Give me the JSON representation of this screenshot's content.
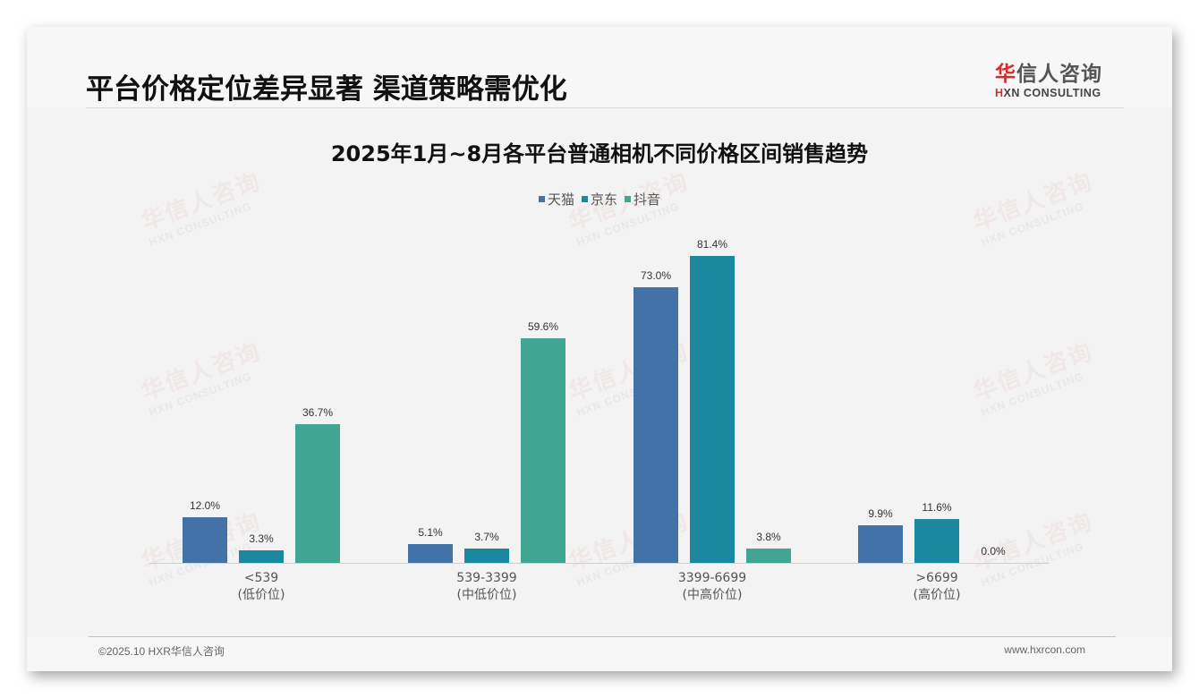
{
  "header": {
    "title": "平台价格定位差异显著 渠道策略需优化",
    "logo": {
      "cn_accent": "华",
      "cn_rest": "信人咨询",
      "en_accent": "H",
      "en_rest": "XN CONSULTING"
    }
  },
  "watermark": {
    "cn": "华信人咨询",
    "en": "HXN CONSULTING"
  },
  "colors": {
    "tmall": "#4272a8",
    "jd": "#1a89a0",
    "douyin": "#40a691",
    "background": "#f3f3f3",
    "logo_red": "#d52b2b"
  },
  "chart_data": {
    "type": "bar",
    "title": "2025年1月~8月各平台普通相机不同价格区间销售趋势",
    "xlabel": "",
    "ylabel": "",
    "ylim": [
      0,
      90
    ],
    "grid": false,
    "legend_position": "top",
    "categories": [
      "<539 (低价位)",
      "539-3399 (中低价位)",
      "3399-6699 (中高价位)",
      ">6699 (高价位)"
    ],
    "category_lines": [
      [
        "<539",
        "(低价位)"
      ],
      [
        "539-3399",
        "(中低价位)"
      ],
      [
        "3399-6699",
        "(中高价位)"
      ],
      [
        ">6699",
        "(高价位)"
      ]
    ],
    "series": [
      {
        "name": "天猫",
        "color": "#4272a8",
        "values": [
          12.0,
          5.1,
          73.0,
          9.9
        ],
        "labels": [
          "12.0%",
          "5.1%",
          "73.0%",
          "9.9%"
        ]
      },
      {
        "name": "京东",
        "color": "#1a89a0",
        "values": [
          3.3,
          3.7,
          81.4,
          11.6
        ],
        "labels": [
          "3.3%",
          "3.7%",
          "81.4%",
          "11.6%"
        ]
      },
      {
        "name": "抖音",
        "color": "#40a691",
        "values": [
          36.7,
          59.6,
          3.8,
          0.0
        ],
        "labels": [
          "36.7%",
          "59.6%",
          "3.8%",
          "0.0%"
        ]
      }
    ]
  },
  "footer": {
    "copyright": "©2025.10 HXR华信人咨询",
    "website": "www.hxrcon.com"
  }
}
